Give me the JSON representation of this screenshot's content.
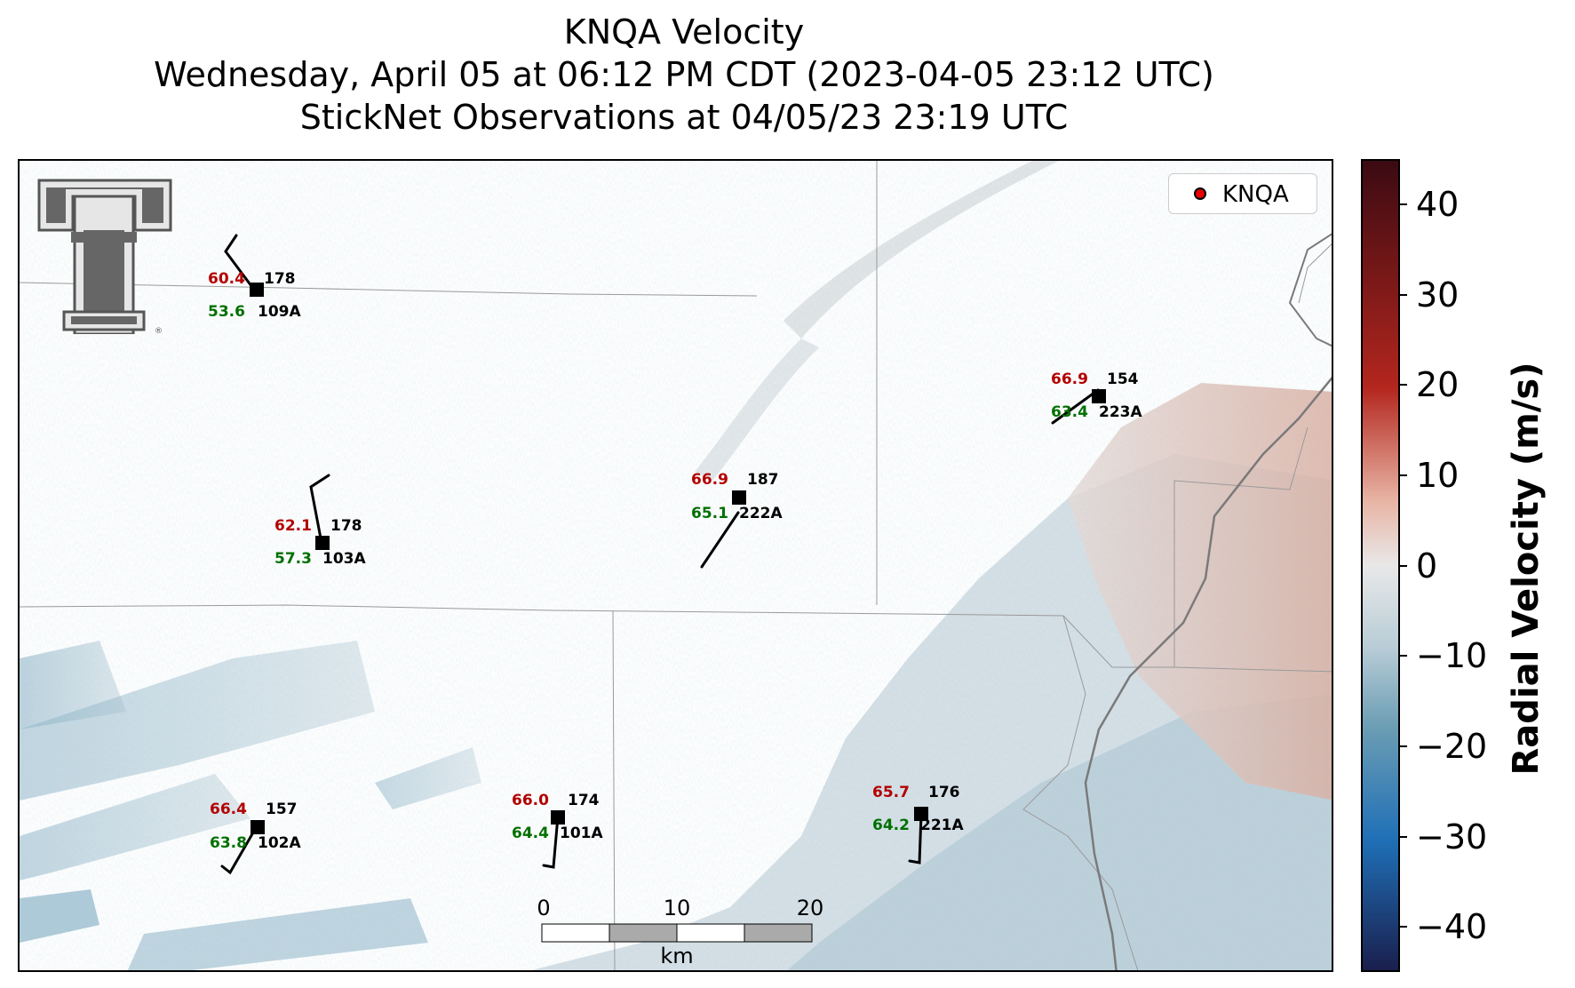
{
  "title": {
    "line1": "KNQA Velocity",
    "line2": "Wednesday, April 05 at 06:12 PM CDT (2023-04-05 23:12 UTC)",
    "line3": "StickNet Observations at 04/05/23 23:19 UTC"
  },
  "legend": {
    "label": "KNQA",
    "marker_color": "#e80000"
  },
  "stations": [
    {
      "id": "109A",
      "temp": "60.4",
      "dew": "53.6",
      "dir": "178"
    },
    {
      "id": "103A",
      "temp": "62.1",
      "dew": "57.3",
      "dir": "178"
    },
    {
      "id": "222A",
      "temp": "66.9",
      "dew": "65.1",
      "dir": "187"
    },
    {
      "id": "223A",
      "temp": "66.9",
      "dew": "63.4",
      "dir": "154"
    },
    {
      "id": "102A",
      "temp": "66.4",
      "dew": "63.8",
      "dir": "157"
    },
    {
      "id": "101A",
      "temp": "66.0",
      "dew": "64.4",
      "dir": "174"
    },
    {
      "id": "221A",
      "temp": "65.7",
      "dew": "64.2",
      "dir": "176"
    }
  ],
  "scale_bar": {
    "labels": [
      "0",
      "10",
      "20"
    ],
    "unit": "km"
  },
  "colorbar": {
    "label": "Radial Velocity (m/s)",
    "ticks": [
      "40",
      "30",
      "20",
      "10",
      "0",
      "−10",
      "−20",
      "−30",
      "−40"
    ],
    "range": [
      -45,
      45
    ],
    "colors": {
      "max": "#3b0a12",
      "high": "#b3261e",
      "mid": "#e8e8e8",
      "low": "#6b9db4",
      "min": "#1a1f4d"
    }
  },
  "logo": "texas-tech-double-t-logo"
}
